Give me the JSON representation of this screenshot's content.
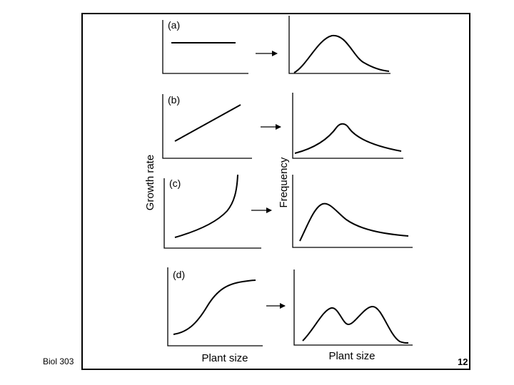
{
  "footer": {
    "course": "Biol 303",
    "page_number": "12"
  },
  "figure": {
    "y_label_left": "Growth rate",
    "y_label_right": "Frequency",
    "x_label_left": "Plant size",
    "x_label_right": "Plant size",
    "panels": [
      {
        "id": "a",
        "label": "(a)",
        "growth": "constant",
        "distribution": "symmetric, unimodal"
      },
      {
        "id": "b",
        "label": "(b)",
        "growth": "linear increasing",
        "distribution": "peaked, symmetric"
      },
      {
        "id": "c",
        "label": "(c)",
        "growth": "exponential increasing",
        "distribution": "right-skewed"
      },
      {
        "id": "d",
        "label": "(d)",
        "growth": "sigmoid",
        "distribution": "bimodal"
      }
    ]
  }
}
